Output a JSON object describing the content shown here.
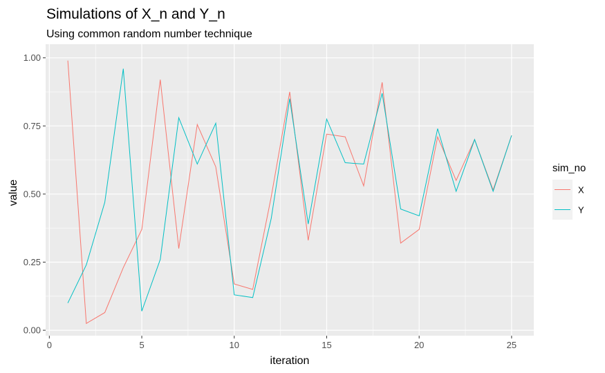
{
  "chart_data": {
    "type": "line",
    "title": "Simulations of X_n and Y_n",
    "subtitle": "Using common random number technique",
    "xlabel": "iteration",
    "ylabel": "value",
    "xlim": [
      -0.2,
      26.2
    ],
    "ylim": [
      -0.02,
      1.05
    ],
    "x_ticks": [
      0,
      5,
      10,
      15,
      20,
      25
    ],
    "x_tick_labels": [
      "0",
      "5",
      "10",
      "15",
      "20",
      "25"
    ],
    "y_ticks": [
      0,
      0.25,
      0.5,
      0.75,
      1.0
    ],
    "y_tick_labels": [
      "0.00",
      "0.25",
      "0.50",
      "0.75",
      "1.00"
    ],
    "grid": true,
    "legend": {
      "title": "sim_no",
      "position": "right"
    },
    "x": [
      1,
      2,
      3,
      4,
      5,
      6,
      7,
      8,
      9,
      10,
      11,
      12,
      13,
      14,
      15,
      16,
      17,
      18,
      19,
      20,
      21,
      22,
      23,
      24,
      25
    ],
    "series": [
      {
        "name": "X",
        "color": "#F8766D",
        "values": [
          0.99,
          0.025,
          0.065,
          0.23,
          0.37,
          0.92,
          0.3,
          0.755,
          0.6,
          0.17,
          0.15,
          0.49,
          0.875,
          0.33,
          0.72,
          0.71,
          0.53,
          0.91,
          0.32,
          0.37,
          0.71,
          0.55,
          0.7,
          0.515,
          0.715
        ]
      },
      {
        "name": "Y",
        "color": "#00BFC4",
        "values": [
          0.1,
          0.24,
          0.47,
          0.96,
          0.07,
          0.26,
          0.78,
          0.61,
          0.76,
          0.13,
          0.12,
          0.41,
          0.85,
          0.39,
          0.775,
          0.615,
          0.61,
          0.87,
          0.445,
          0.42,
          0.74,
          0.51,
          0.7,
          0.51,
          0.715
        ]
      }
    ]
  },
  "colors": {
    "panel_background": "#EBEBEB",
    "grid_major": "#FFFFFF",
    "legend_key_background": "#F2F2F2",
    "tick_mark": "#333333"
  }
}
